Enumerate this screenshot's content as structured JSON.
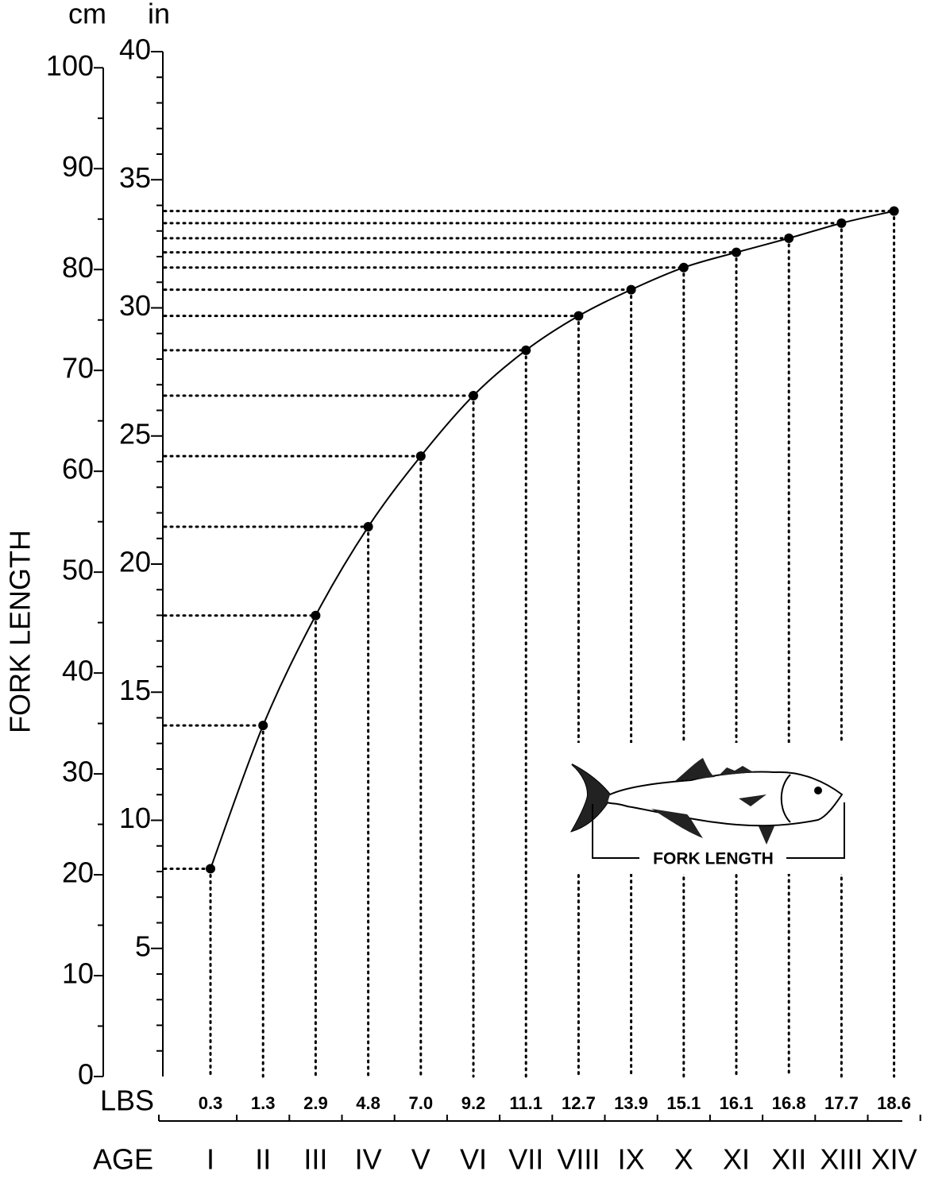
{
  "chart_data": {
    "type": "line",
    "y_unit_label": "cm",
    "y2_unit_label": "in",
    "ylabel": "FORK LENGTH",
    "weight_label": "LBS",
    "xlabel": "AGE",
    "annotation": "FORK LENGTH",
    "categories": [
      "I",
      "II",
      "III",
      "IV",
      "V",
      "VI",
      "VII",
      "VIII",
      "IX",
      "X",
      "XI",
      "XII",
      "XIII",
      "XIV"
    ],
    "weights": [
      "0.3",
      "1.3",
      "2.9",
      "4.8",
      "7.0",
      "9.2",
      "11.1",
      "12.7",
      "13.9",
      "15.1",
      "16.1",
      "16.8",
      "17.7",
      "18.6"
    ],
    "series": [
      {
        "name": "Fork length",
        "color": "#000000",
        "values": [
          20.6,
          34.8,
          45.7,
          54.5,
          61.5,
          67.5,
          72.0,
          75.4,
          78.0,
          80.2,
          81.7,
          83.1,
          84.6,
          85.8
        ]
      }
    ],
    "ylim": [
      0,
      101.6
    ],
    "yticks": [
      0,
      10,
      20,
      30,
      40,
      50,
      60,
      70,
      80,
      90,
      100
    ],
    "yminorticks": [
      5,
      15,
      25,
      35,
      45,
      55,
      65,
      75,
      85,
      95
    ],
    "y2lim": [
      0,
      40
    ],
    "y2ticks": [
      5,
      10,
      15,
      20,
      25,
      30,
      35,
      40
    ],
    "y2minorticks": [
      1,
      2,
      3,
      4,
      6,
      7,
      8,
      9,
      11,
      12,
      13,
      14,
      16,
      17,
      18,
      19,
      21,
      22,
      23,
      24,
      26,
      27,
      28,
      29,
      31,
      32,
      33,
      34,
      36,
      37,
      38,
      39
    ]
  }
}
